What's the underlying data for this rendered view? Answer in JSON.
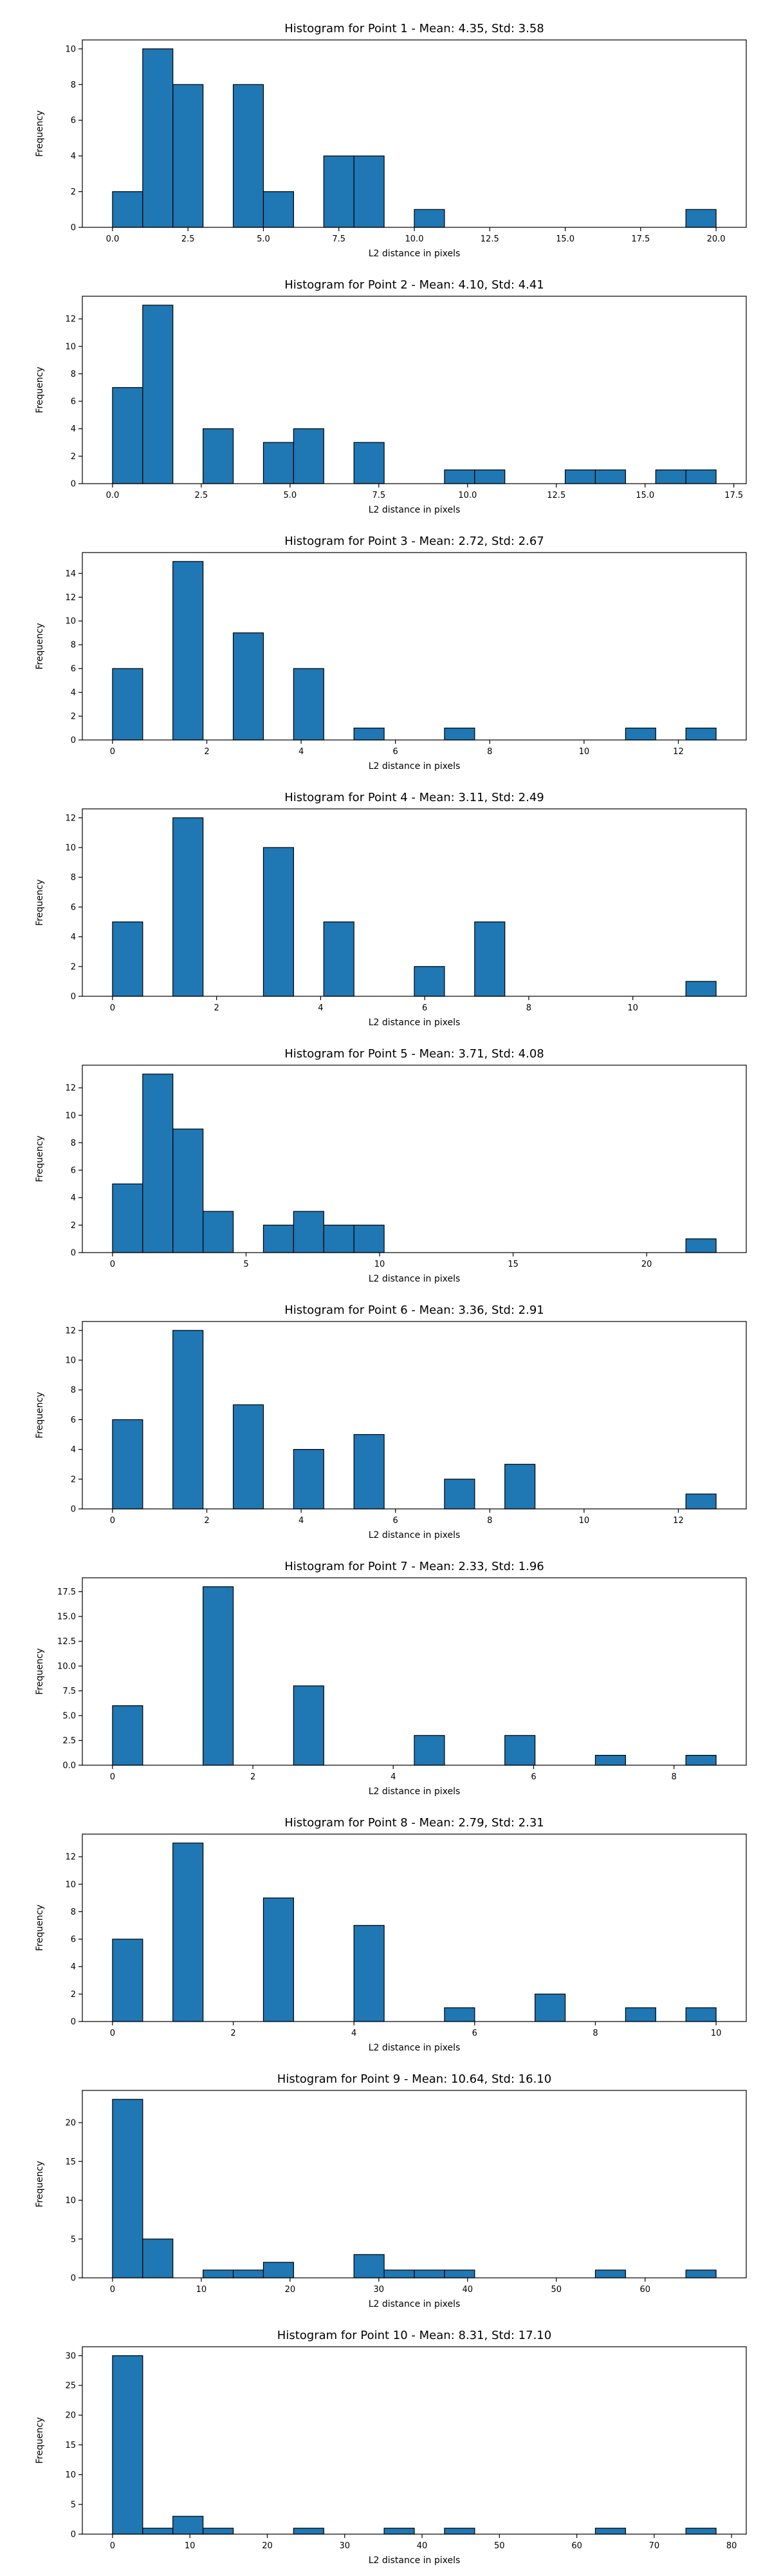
{
  "figure": {
    "background": "#ffffff",
    "bar_color": "#1f77b4",
    "edge_color": "#000000"
  },
  "chart_data": [
    {
      "type": "bar",
      "title": "Histogram for Point 1 - Mean: 4.35, Std: 3.58",
      "xlabel": "L2 distance in pixels",
      "ylabel": "Frequency",
      "xlim": [
        -1.0,
        21.0
      ],
      "ylim": [
        0,
        10.5
      ],
      "xticks": [
        0.0,
        2.5,
        5.0,
        7.5,
        10.0,
        12.5,
        15.0,
        17.5,
        20.0
      ],
      "xtick_labels": [
        "0.0",
        "2.5",
        "5.0",
        "7.5",
        "10.0",
        "12.5",
        "15.0",
        "17.5",
        "20.0"
      ],
      "yticks": [
        0,
        2,
        4,
        6,
        8,
        10
      ],
      "ytick_labels": [
        "0",
        "2",
        "4",
        "6",
        "8",
        "10"
      ],
      "bin_edges": [
        0.0,
        1.0,
        2.0,
        3.0,
        4.0,
        5.0,
        6.0,
        7.0,
        8.0,
        9.0,
        10.0,
        11.0,
        12.0,
        13.0,
        14.0,
        15.0,
        16.0,
        17.0,
        18.0,
        19.0,
        20.0
      ],
      "values": [
        2,
        10,
        8,
        0,
        8,
        2,
        0,
        4,
        4,
        0,
        1,
        0,
        0,
        0,
        0,
        0,
        0,
        0,
        0,
        1
      ]
    },
    {
      "type": "bar",
      "title": "Histogram for Point 2 - Mean: 4.10, Std: 4.41",
      "xlabel": "L2 distance in pixels",
      "ylabel": "Frequency",
      "xlim": [
        -0.85,
        17.85
      ],
      "ylim": [
        0,
        13.65
      ],
      "xticks": [
        0.0,
        2.5,
        5.0,
        7.5,
        10.0,
        12.5,
        15.0,
        17.5
      ],
      "xtick_labels": [
        "0.0",
        "2.5",
        "5.0",
        "7.5",
        "10.0",
        "12.5",
        "15.0",
        "17.5"
      ],
      "yticks": [
        0,
        2,
        4,
        6,
        8,
        10,
        12
      ],
      "ytick_labels": [
        "0",
        "2",
        "4",
        "6",
        "8",
        "10",
        "12"
      ],
      "bin_edges": [
        0.0,
        0.85,
        1.7,
        2.55,
        3.4,
        4.25,
        5.1,
        5.95,
        6.8,
        7.65,
        8.5,
        9.35,
        10.2,
        11.05,
        11.9,
        12.75,
        13.6,
        14.45,
        15.3,
        16.15,
        17.0
      ],
      "values": [
        7,
        13,
        0,
        4,
        0,
        3,
        4,
        0,
        3,
        0,
        0,
        1,
        1,
        0,
        0,
        1,
        1,
        0,
        1,
        1
      ]
    },
    {
      "type": "bar",
      "title": "Histogram for Point 3 - Mean: 2.72, Std: 2.67",
      "xlabel": "L2 distance in pixels",
      "ylabel": "Frequency",
      "xlim": [
        -0.64,
        13.44
      ],
      "ylim": [
        0,
        15.75
      ],
      "xticks": [
        0,
        2,
        4,
        6,
        8,
        10,
        12
      ],
      "xtick_labels": [
        "0",
        "2",
        "4",
        "6",
        "8",
        "10",
        "12"
      ],
      "yticks": [
        0,
        2,
        4,
        6,
        8,
        10,
        12,
        14
      ],
      "ytick_labels": [
        "0",
        "2",
        "4",
        "6",
        "8",
        "10",
        "12",
        "14"
      ],
      "bin_edges": [
        0.0,
        0.64,
        1.28,
        1.92,
        2.56,
        3.2,
        3.84,
        4.48,
        5.12,
        5.76,
        6.4,
        7.04,
        7.68,
        8.32,
        8.96,
        9.6,
        10.24,
        10.88,
        11.52,
        12.16,
        12.8
      ],
      "values": [
        6,
        0,
        15,
        0,
        9,
        0,
        6,
        0,
        1,
        0,
        0,
        1,
        0,
        0,
        0,
        0,
        0,
        1,
        0,
        1
      ]
    },
    {
      "type": "bar",
      "title": "Histogram for Point 4 - Mean: 3.11, Std: 2.49",
      "xlabel": "L2 distance in pixels",
      "ylabel": "Frequency",
      "xlim": [
        -0.58,
        12.18
      ],
      "ylim": [
        0,
        12.6
      ],
      "xticks": [
        0,
        2,
        4,
        6,
        8,
        10
      ],
      "xtick_labels": [
        "0",
        "2",
        "4",
        "6",
        "8",
        "10"
      ],
      "yticks": [
        0,
        2,
        4,
        6,
        8,
        10,
        12
      ],
      "ytick_labels": [
        "0",
        "2",
        "4",
        "6",
        "8",
        "10",
        "12"
      ],
      "bin_edges": [
        0.0,
        0.58,
        1.16,
        1.74,
        2.32,
        2.9,
        3.48,
        4.06,
        4.64,
        5.22,
        5.8,
        6.38,
        6.96,
        7.54,
        8.12,
        8.7,
        9.28,
        9.86,
        10.44,
        11.02,
        11.6
      ],
      "values": [
        5,
        0,
        12,
        0,
        0,
        10,
        0,
        5,
        0,
        0,
        2,
        0,
        5,
        0,
        0,
        0,
        0,
        0,
        0,
        1
      ]
    },
    {
      "type": "bar",
      "title": "Histogram for Point 5 - Mean: 3.71, Std: 4.08",
      "xlabel": "L2 distance in pixels",
      "ylabel": "Frequency",
      "xlim": [
        -1.13,
        23.73
      ],
      "ylim": [
        0,
        13.65
      ],
      "xticks": [
        0,
        5,
        10,
        15,
        20
      ],
      "xtick_labels": [
        "0",
        "5",
        "10",
        "15",
        "20"
      ],
      "yticks": [
        0,
        2,
        4,
        6,
        8,
        10,
        12
      ],
      "ytick_labels": [
        "0",
        "2",
        "4",
        "6",
        "8",
        "10",
        "12"
      ],
      "bin_edges": [
        0.0,
        1.13,
        2.26,
        3.39,
        4.52,
        5.65,
        6.78,
        7.91,
        9.04,
        10.17,
        11.3,
        12.43,
        13.56,
        14.69,
        15.82,
        16.95,
        18.08,
        19.21,
        20.34,
        21.47,
        22.6
      ],
      "values": [
        5,
        13,
        9,
        3,
        0,
        2,
        3,
        2,
        2,
        0,
        0,
        0,
        0,
        0,
        0,
        0,
        0,
        0,
        0,
        1
      ]
    },
    {
      "type": "bar",
      "title": "Histogram for Point 6 - Mean: 3.36, Std: 2.91",
      "xlabel": "L2 distance in pixels",
      "ylabel": "Frequency",
      "xlim": [
        -0.64,
        13.44
      ],
      "ylim": [
        0,
        12.6
      ],
      "xticks": [
        0,
        2,
        4,
        6,
        8,
        10,
        12
      ],
      "xtick_labels": [
        "0",
        "2",
        "4",
        "6",
        "8",
        "10",
        "12"
      ],
      "yticks": [
        0,
        2,
        4,
        6,
        8,
        10,
        12
      ],
      "ytick_labels": [
        "0",
        "2",
        "4",
        "6",
        "8",
        "10",
        "12"
      ],
      "bin_edges": [
        0.0,
        0.64,
        1.28,
        1.92,
        2.56,
        3.2,
        3.84,
        4.48,
        5.12,
        5.76,
        6.4,
        7.04,
        7.68,
        8.32,
        8.96,
        9.6,
        10.24,
        10.88,
        11.52,
        12.16,
        12.8
      ],
      "values": [
        6,
        0,
        12,
        0,
        7,
        0,
        4,
        0,
        5,
        0,
        0,
        2,
        0,
        3,
        0,
        0,
        0,
        0,
        0,
        1
      ]
    },
    {
      "type": "bar",
      "title": "Histogram for Point 7 - Mean: 2.33, Std: 1.96",
      "xlabel": "L2 distance in pixels",
      "ylabel": "Frequency",
      "xlim": [
        -0.43,
        9.03
      ],
      "ylim": [
        0,
        18.9
      ],
      "xticks": [
        0,
        2,
        4,
        6,
        8
      ],
      "xtick_labels": [
        "0",
        "2",
        "4",
        "6",
        "8"
      ],
      "yticks": [
        0.0,
        2.5,
        5.0,
        7.5,
        10.0,
        12.5,
        15.0,
        17.5
      ],
      "ytick_labels": [
        "0.0",
        "2.5",
        "5.0",
        "7.5",
        "10.0",
        "12.5",
        "15.0",
        "17.5"
      ],
      "bin_edges": [
        0.0,
        0.43,
        0.86,
        1.29,
        1.72,
        2.15,
        2.58,
        3.01,
        3.44,
        3.87,
        4.3,
        4.73,
        5.16,
        5.59,
        6.02,
        6.45,
        6.88,
        7.31,
        7.74,
        8.17,
        8.6
      ],
      "values": [
        6,
        0,
        0,
        18,
        0,
        0,
        8,
        0,
        0,
        0,
        3,
        0,
        0,
        3,
        0,
        0,
        1,
        0,
        0,
        1
      ]
    },
    {
      "type": "bar",
      "title": "Histogram for Point 8 - Mean: 2.79, Std: 2.31",
      "xlabel": "L2 distance in pixels",
      "ylabel": "Frequency",
      "xlim": [
        -0.5,
        10.5
      ],
      "ylim": [
        0,
        13.65
      ],
      "xticks": [
        0,
        2,
        4,
        6,
        8,
        10
      ],
      "xtick_labels": [
        "0",
        "2",
        "4",
        "6",
        "8",
        "10"
      ],
      "yticks": [
        0,
        2,
        4,
        6,
        8,
        10,
        12
      ],
      "ytick_labels": [
        "0",
        "2",
        "4",
        "6",
        "8",
        "10",
        "12"
      ],
      "bin_edges": [
        0.0,
        0.5,
        1.0,
        1.5,
        2.0,
        2.5,
        3.0,
        3.5,
        4.0,
        4.5,
        5.0,
        5.5,
        6.0,
        6.5,
        7.0,
        7.5,
        8.0,
        8.5,
        9.0,
        9.5,
        10.0
      ],
      "values": [
        6,
        0,
        13,
        0,
        0,
        9,
        0,
        0,
        7,
        0,
        0,
        1,
        0,
        0,
        2,
        0,
        0,
        1,
        0,
        1
      ]
    },
    {
      "type": "bar",
      "title": "Histogram for Point 9 - Mean: 10.64, Std: 16.10",
      "xlabel": "L2 distance in pixels",
      "ylabel": "Frequency",
      "xlim": [
        -3.4,
        71.4
      ],
      "ylim": [
        0,
        24.15
      ],
      "xticks": [
        0,
        10,
        20,
        30,
        40,
        50,
        60
      ],
      "xtick_labels": [
        "0",
        "10",
        "20",
        "30",
        "40",
        "50",
        "60"
      ],
      "yticks": [
        0,
        5,
        10,
        15,
        20
      ],
      "ytick_labels": [
        "0",
        "5",
        "10",
        "15",
        "20"
      ],
      "bin_edges": [
        0.0,
        3.4,
        6.8,
        10.2,
        13.6,
        17.0,
        20.4,
        23.8,
        27.2,
        30.6,
        34.0,
        37.4,
        40.8,
        44.2,
        47.6,
        51.0,
        54.4,
        57.8,
        61.2,
        64.6,
        68.0
      ],
      "values": [
        23,
        5,
        0,
        1,
        1,
        2,
        0,
        0,
        3,
        1,
        1,
        1,
        0,
        0,
        0,
        0,
        1,
        0,
        0,
        1
      ]
    },
    {
      "type": "bar",
      "title": "Histogram for Point 10 - Mean: 8.31, Std: 17.10",
      "xlabel": "L2 distance in pixels",
      "ylabel": "Frequency",
      "xlim": [
        -3.9,
        81.9
      ],
      "ylim": [
        0,
        31.5
      ],
      "xticks": [
        0,
        10,
        20,
        30,
        40,
        50,
        60,
        70,
        80
      ],
      "xtick_labels": [
        "0",
        "10",
        "20",
        "30",
        "40",
        "50",
        "60",
        "70",
        "80"
      ],
      "yticks": [
        0,
        5,
        10,
        15,
        20,
        25,
        30
      ],
      "ytick_labels": [
        "0",
        "5",
        "10",
        "15",
        "20",
        "25",
        "30"
      ],
      "bin_edges": [
        0.0,
        3.9,
        7.8,
        11.7,
        15.6,
        19.5,
        23.4,
        27.3,
        31.2,
        35.1,
        39.0,
        42.9,
        46.8,
        50.7,
        54.6,
        58.5,
        62.4,
        66.3,
        70.2,
        74.1,
        78.0
      ],
      "values": [
        30,
        1,
        3,
        1,
        0,
        0,
        1,
        0,
        0,
        1,
        0,
        1,
        0,
        0,
        0,
        0,
        1,
        0,
        0,
        1
      ]
    }
  ]
}
